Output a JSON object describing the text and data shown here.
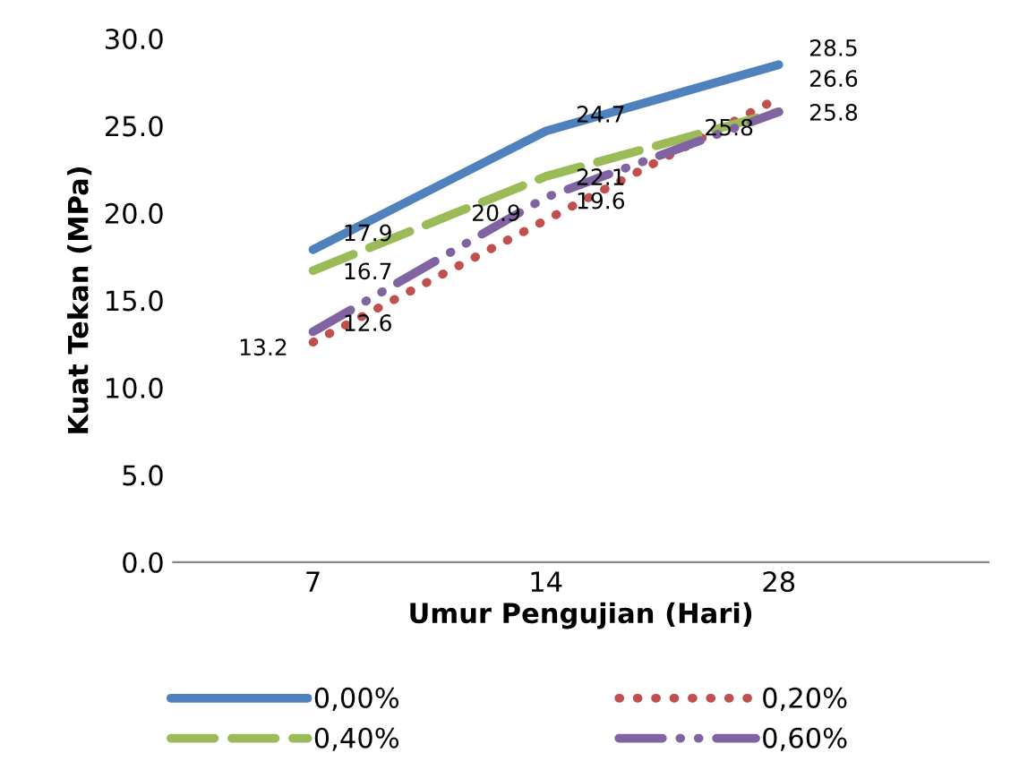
{
  "chart_data": {
    "type": "line",
    "xlabel": "Umur Pengujian (Hari)",
    "ylabel": "Kuat Tekan (MPa)",
    "categories": [
      "7",
      "14",
      "28"
    ],
    "series": [
      {
        "name": "0,00%",
        "color": "#4f81bd",
        "values": [
          17.9,
          24.7,
          28.5
        ],
        "line_style": "solid"
      },
      {
        "name": "0,20%",
        "color": "#c0504d",
        "values": [
          12.6,
          19.6,
          26.6
        ],
        "line_style": "dotted"
      },
      {
        "name": "0,40%",
        "color": "#9bbb59",
        "values": [
          16.7,
          22.1,
          25.8
        ],
        "line_style": "dashed"
      },
      {
        "name": "0,60%",
        "color": "#8064a2",
        "values": [
          13.2,
          20.9,
          25.8
        ],
        "line_style": "dashdot"
      }
    ],
    "ylim": [
      0,
      30
    ],
    "yticks": [
      {
        "value": 0,
        "label": "0.0"
      },
      {
        "value": 5,
        "label": "5.0"
      },
      {
        "value": 10,
        "label": "10.0"
      },
      {
        "value": 15,
        "label": "15.0"
      },
      {
        "value": 20,
        "label": "20.0"
      },
      {
        "value": 25,
        "label": "25.0"
      },
      {
        "value": 30,
        "label": "30.0"
      }
    ],
    "data_labels": true,
    "legend": "bottom",
    "grid": false,
    "marker": "none"
  }
}
